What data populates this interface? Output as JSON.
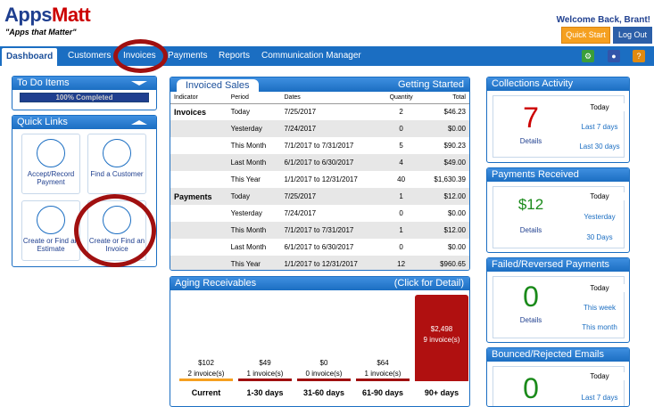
{
  "header": {
    "logo_apps": "Apps",
    "logo_matt": "Matt",
    "tagline": "\"Apps that Matter\"",
    "welcome": "Welcome Back, Brant!",
    "quick_start": "Quick Start",
    "log_out": "Log Out"
  },
  "nav": {
    "items": [
      "Dashboard",
      "Customers",
      "Invoices",
      "Payments",
      "Reports",
      "Communication Manager"
    ],
    "icons": [
      "settings-icon",
      "user-icon",
      "help-icon"
    ]
  },
  "todo": {
    "title": "To Do Items",
    "progress_text": "100% Completed",
    "progress": 1.0
  },
  "quick_links": {
    "title": "Quick Links",
    "tiles": [
      {
        "label": "Accept/Record Payment",
        "icon": "credit-card-icon"
      },
      {
        "label": "Find a Customer",
        "icon": "user-search-icon"
      },
      {
        "label": "Create or Find an Estimate",
        "icon": "document-icon"
      },
      {
        "label": "Create or Find an Invoice",
        "icon": "document-icon"
      }
    ]
  },
  "sales": {
    "tab": "Invoiced Sales",
    "getting_started": "Getting Started",
    "headers": [
      "Indicator",
      "Period",
      "Dates",
      "Quantity",
      "Total"
    ],
    "rows": [
      [
        "Invoices",
        "Today",
        "7/25/2017",
        "2",
        "$46.23"
      ],
      [
        "",
        "Yesterday",
        "7/24/2017",
        "0",
        "$0.00"
      ],
      [
        "",
        "This Month",
        "7/1/2017 to 7/31/2017",
        "5",
        "$90.23"
      ],
      [
        "",
        "Last Month",
        "6/1/2017 to 6/30/2017",
        "4",
        "$49.00"
      ],
      [
        "",
        "This Year",
        "1/1/2017 to 12/31/2017",
        "40",
        "$1,630.39"
      ],
      [
        "Payments",
        "Today",
        "7/25/2017",
        "1",
        "$12.00"
      ],
      [
        "",
        "Yesterday",
        "7/24/2017",
        "0",
        "$0.00"
      ],
      [
        "",
        "This Month",
        "7/1/2017 to 7/31/2017",
        "1",
        "$12.00"
      ],
      [
        "",
        "Last Month",
        "6/1/2017 to 6/30/2017",
        "0",
        "$0.00"
      ],
      [
        "",
        "This Year",
        "1/1/2017 to 12/31/2017",
        "12",
        "$960.65"
      ]
    ]
  },
  "aging": {
    "title": "Aging Receivables",
    "click": "(Click for Detail)",
    "buckets": [
      {
        "label": "Current",
        "amount": "$102",
        "count": "2 invoice(s)",
        "value": 102,
        "color": "#f5a020"
      },
      {
        "label": "1-30 days",
        "amount": "$49",
        "count": "1 invoice(s)",
        "value": 49,
        "color": "#a01010"
      },
      {
        "label": "31-60 days",
        "amount": "$0",
        "count": "0 invoice(s)",
        "value": 0,
        "color": "#a01010"
      },
      {
        "label": "61-90 days",
        "amount": "$64",
        "count": "1 invoice(s)",
        "value": 64,
        "color": "#a01010"
      },
      {
        "label": "90+ days",
        "amount": "$2,498",
        "count": "9 invoice(s)",
        "value": 2498,
        "color": "#b01010"
      }
    ]
  },
  "collections": {
    "title": "Collections Activity",
    "value": "7",
    "details": "Details",
    "options": [
      "Today",
      "Last 7 days",
      "Last 30 days"
    ]
  },
  "payments_received": {
    "title": "Payments Received",
    "value": "$12",
    "details": "Details",
    "options": [
      "Today",
      "Yesterday",
      "30 Days"
    ]
  },
  "failed": {
    "title": "Failed/Reversed Payments",
    "value": "0",
    "details": "Details",
    "options": [
      "Today",
      "This week",
      "This month"
    ]
  },
  "bounced": {
    "title": "Bounced/Rejected Emails",
    "value": "0",
    "options": [
      "Today",
      "Last 7 days"
    ]
  }
}
